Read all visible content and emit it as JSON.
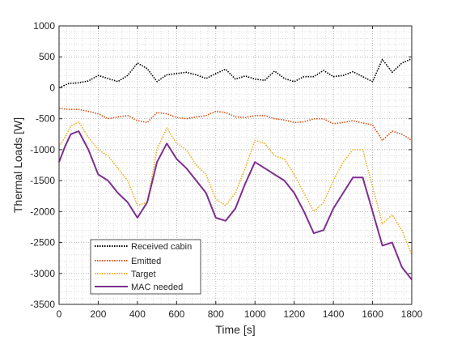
{
  "chart_data": {
    "type": "line",
    "title": "",
    "xlabel": "Time [s]",
    "ylabel": "Thermal Loads [W]",
    "xlim": [
      0,
      1800
    ],
    "ylim": [
      -3500,
      1000
    ],
    "xticks": [
      0,
      200,
      400,
      600,
      800,
      1000,
      1200,
      1400,
      1600,
      1800
    ],
    "yticks": [
      -3500,
      -3000,
      -2500,
      -2000,
      -1500,
      -1000,
      -500,
      0,
      500,
      1000
    ],
    "grid": "dotted, major and minor",
    "legend_position": "bottom-left",
    "series": [
      {
        "name": "Received cabin",
        "color": "#000000",
        "style": "dotted",
        "x": [
          0,
          50,
          100,
          150,
          200,
          250,
          300,
          350,
          400,
          450,
          500,
          550,
          600,
          650,
          700,
          750,
          800,
          850,
          900,
          950,
          1000,
          1050,
          1100,
          1150,
          1200,
          1250,
          1300,
          1350,
          1400,
          1450,
          1500,
          1550,
          1600,
          1650,
          1700,
          1750,
          1800
        ],
        "values": [
          0,
          70,
          80,
          110,
          200,
          150,
          100,
          200,
          400,
          310,
          100,
          210,
          230,
          250,
          210,
          150,
          230,
          300,
          140,
          190,
          140,
          120,
          270,
          150,
          100,
          180,
          180,
          280,
          180,
          200,
          260,
          180,
          100,
          460,
          250,
          400,
          470
        ]
      },
      {
        "name": "Emitted",
        "color": "#d95319",
        "style": "dotted",
        "x": [
          0,
          50,
          100,
          150,
          200,
          250,
          300,
          350,
          400,
          450,
          500,
          550,
          600,
          650,
          700,
          750,
          800,
          850,
          900,
          950,
          1000,
          1050,
          1100,
          1150,
          1200,
          1250,
          1300,
          1350,
          1400,
          1450,
          1500,
          1550,
          1600,
          1650,
          1700,
          1750,
          1800
        ],
        "values": [
          -330,
          -350,
          -350,
          -380,
          -420,
          -500,
          -470,
          -450,
          -530,
          -560,
          -400,
          -420,
          -480,
          -500,
          -470,
          -450,
          -380,
          -400,
          -470,
          -480,
          -450,
          -450,
          -500,
          -520,
          -560,
          -550,
          -500,
          -500,
          -580,
          -560,
          -530,
          -570,
          -600,
          -850,
          -700,
          -750,
          -850
        ]
      },
      {
        "name": "Target",
        "color": "#edb120",
        "style": "dotted",
        "x": [
          0,
          30,
          60,
          100,
          150,
          200,
          250,
          300,
          350,
          400,
          450,
          500,
          550,
          600,
          650,
          700,
          750,
          800,
          850,
          900,
          950,
          1000,
          1050,
          1100,
          1150,
          1200,
          1250,
          1300,
          1350,
          1400,
          1450,
          1500,
          1550,
          1600,
          1650,
          1700,
          1750,
          1800
        ],
        "values": [
          -950,
          -800,
          -620,
          -550,
          -800,
          -1000,
          -1100,
          -1300,
          -1500,
          -1900,
          -1850,
          -1000,
          -650,
          -900,
          -1000,
          -1250,
          -1400,
          -1800,
          -1900,
          -1700,
          -1300,
          -850,
          -900,
          -1100,
          -1150,
          -1400,
          -1700,
          -2000,
          -1850,
          -1500,
          -1200,
          -1000,
          -1000,
          -1600,
          -2200,
          -2050,
          -2300,
          -2700
        ]
      },
      {
        "name": "MAC needed",
        "color": "#7e2f8e",
        "style": "solid",
        "x": [
          0,
          30,
          60,
          100,
          150,
          200,
          250,
          300,
          350,
          400,
          450,
          500,
          550,
          600,
          650,
          700,
          750,
          800,
          850,
          900,
          950,
          1000,
          1050,
          1100,
          1150,
          1200,
          1250,
          1300,
          1350,
          1400,
          1450,
          1500,
          1550,
          1600,
          1650,
          1700,
          1750,
          1800
        ],
        "values": [
          -1200,
          -950,
          -750,
          -700,
          -1000,
          -1400,
          -1500,
          -1700,
          -1850,
          -2100,
          -1850,
          -1200,
          -900,
          -1150,
          -1300,
          -1500,
          -1700,
          -2100,
          -2150,
          -1950,
          -1550,
          -1200,
          -1300,
          -1400,
          -1500,
          -1700,
          -2000,
          -2350,
          -2300,
          -1950,
          -1700,
          -1450,
          -1450,
          -2000,
          -2550,
          -2500,
          -2900,
          -3100
        ]
      }
    ]
  }
}
